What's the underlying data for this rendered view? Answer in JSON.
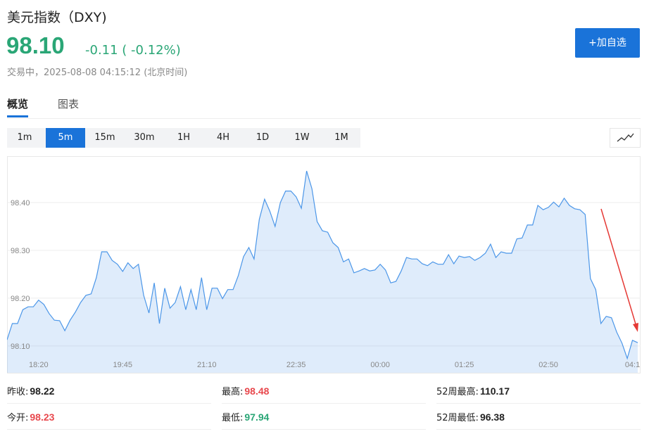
{
  "header": {
    "title": "美元指数（DXY)",
    "price": "98.10",
    "change": "-0.11 ( -0.12%)",
    "status": "交易中，2025-08-08 04:15:12 (北京时间)",
    "button": "+加自选"
  },
  "tabs": [
    "概览",
    "图表"
  ],
  "intervals": [
    "1m",
    "5m",
    "15m",
    "30m",
    "1H",
    "4H",
    "1D",
    "1W",
    "1M"
  ],
  "chart_data": {
    "type": "area",
    "color": "#4b96e8",
    "grid": true,
    "categories": [
      null,
      null,
      null,
      null,
      null,
      null,
      "18:20",
      null,
      null,
      null,
      null,
      null,
      null,
      null,
      null,
      null,
      null,
      null,
      null,
      null,
      null,
      null,
      "19:45",
      null,
      null,
      null,
      null,
      null,
      null,
      null,
      null,
      null,
      null,
      null,
      null,
      null,
      null,
      null,
      "21:10",
      null,
      null,
      null,
      null,
      null,
      null,
      null,
      null,
      null,
      null,
      null,
      null,
      null,
      null,
      null,
      null,
      "22:35",
      null,
      null,
      null,
      null,
      null,
      null,
      null,
      null,
      null,
      null,
      null,
      null,
      null,
      null,
      null,
      "00:00",
      null,
      null,
      null,
      null,
      null,
      null,
      null,
      null,
      null,
      null,
      null,
      null,
      null,
      null,
      null,
      "01:25",
      null,
      null,
      null,
      null,
      null,
      null,
      null,
      null,
      null,
      null,
      null,
      null,
      null,
      null,
      null,
      "02:50",
      null,
      null,
      null,
      null,
      null,
      null,
      null,
      null,
      null,
      null,
      null,
      null,
      null,
      null,
      null,
      "04:1",
      null
    ],
    "values": [
      98.113,
      98.147,
      98.147,
      98.176,
      98.182,
      98.182,
      98.196,
      98.187,
      98.168,
      98.154,
      98.153,
      98.132,
      98.154,
      98.171,
      98.191,
      98.206,
      98.209,
      98.243,
      98.297,
      98.297,
      98.279,
      98.271,
      98.256,
      98.274,
      98.262,
      98.271,
      98.206,
      98.169,
      98.232,
      98.147,
      98.221,
      98.179,
      98.191,
      98.224,
      98.176,
      98.218,
      98.176,
      98.243,
      98.176,
      98.221,
      98.221,
      98.199,
      98.218,
      98.218,
      98.247,
      98.287,
      98.306,
      98.282,
      98.365,
      98.407,
      98.382,
      98.35,
      98.4,
      98.424,
      98.424,
      98.412,
      98.388,
      98.466,
      98.429,
      98.36,
      98.341,
      98.338,
      98.316,
      98.306,
      98.276,
      98.282,
      98.253,
      98.257,
      98.262,
      98.257,
      98.259,
      98.271,
      98.259,
      98.232,
      98.235,
      98.257,
      98.285,
      98.282,
      98.282,
      98.272,
      98.268,
      98.276,
      98.271,
      98.271,
      98.291,
      98.272,
      98.288,
      98.285,
      98.287,
      98.279,
      98.285,
      98.294,
      98.313,
      98.285,
      98.297,
      98.294,
      98.294,
      98.324,
      98.326,
      98.353,
      98.353,
      98.394,
      98.385,
      98.39,
      98.401,
      98.391,
      98.409,
      98.394,
      98.387,
      98.385,
      98.375,
      98.241,
      98.218,
      98.147,
      98.162,
      98.159,
      98.129,
      98.106,
      98.074,
      98.112,
      98.107
    ],
    "ylim": [
      98.044,
      98.497
    ],
    "yticks": [
      {
        "value": 98.1,
        "label": "98.10"
      },
      {
        "value": 98.2,
        "label": "98.20"
      },
      {
        "value": 98.3,
        "label": "98.30"
      },
      {
        "value": 98.4,
        "label": "98.40"
      }
    ]
  },
  "stats": [
    {
      "label": "昨收:",
      "value": "98.22"
    },
    {
      "label": "最高:",
      "value": "98.48"
    },
    {
      "label": "52周最高:",
      "value": "110.17"
    },
    {
      "label": "今开:",
      "value": "98.23"
    },
    {
      "label": "最低:",
      "value": "97.94"
    },
    {
      "label": "52周最低:",
      "value": "96.38"
    }
  ]
}
